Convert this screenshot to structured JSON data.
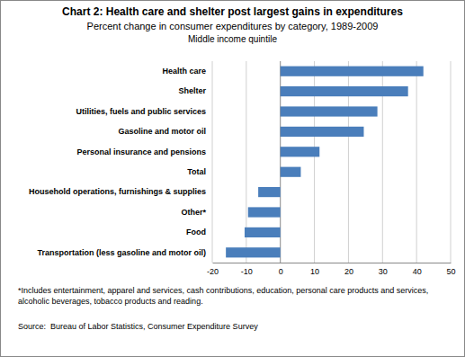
{
  "chart_data": {
    "type": "bar",
    "title": "Chart 2: Health care and shelter post largest gains in expenditures",
    "subtitle": [
      "Percent change in consumer expenditures by category, 1989-2009",
      "Middle income quintile"
    ],
    "categories": [
      "Health care",
      "Shelter",
      "Utilities, fuels and public services",
      "Gasoline and motor oil",
      "Personal insurance and pensions",
      "Total",
      "Household operations, furnishings & supplies",
      "Other*",
      "Food",
      "Transportation (less gasoline and motor oil)"
    ],
    "values": [
      42,
      37.5,
      28.5,
      24.5,
      11.5,
      6,
      -6.5,
      -9.5,
      -10.5,
      -16
    ],
    "color": "#4a7ebb",
    "orientation": "horizontal",
    "xlim": [
      -20,
      50
    ],
    "xticks": [
      -20,
      -10,
      0,
      10,
      20,
      30,
      40,
      50
    ],
    "grid": true,
    "annotations": [
      "*Includes entertainment, apparel and services, cash contributions, education, personal care products and services, alcoholic beverages, tobacco products and reading.",
      "Source:  Bureau of Labor Statistics, Consumer Expenditure Survey"
    ]
  }
}
